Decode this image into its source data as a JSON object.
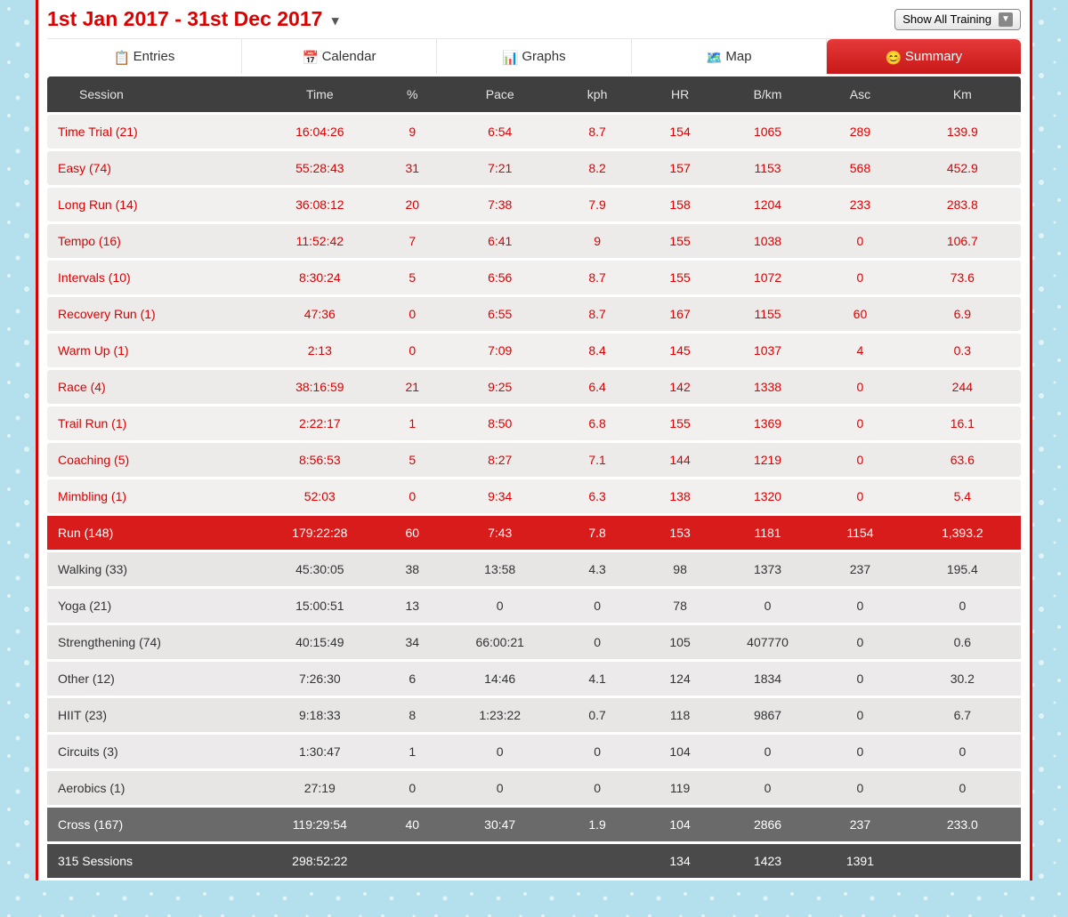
{
  "header": {
    "dateRange": "1st Jan 2017 - 31st Dec 2017",
    "dropdown": "Show All Training"
  },
  "tabs": [
    {
      "label": "Entries",
      "icon": "📋"
    },
    {
      "label": "Calendar",
      "icon": "📅"
    },
    {
      "label": "Graphs",
      "icon": "📊"
    },
    {
      "label": "Map",
      "icon": "🗺️"
    },
    {
      "label": "Summary",
      "icon": "😊",
      "active": true
    }
  ],
  "columns": [
    "Session",
    "Time",
    "%",
    "Pace",
    "kph",
    "HR",
    "B/km",
    "Asc",
    "Km"
  ],
  "colWidths": [
    "22%",
    "12%",
    "7%",
    "11%",
    "9%",
    "8%",
    "10%",
    "9%",
    "12%"
  ],
  "rows": [
    {
      "cls": "red",
      "c": [
        "Time Trial (21)",
        "16:04:26",
        "9",
        "6:54",
        "8.7",
        "154",
        "1065",
        "289",
        "139.9"
      ]
    },
    {
      "cls": "red",
      "c": [
        "Easy (74)",
        "55:28:43",
        "31",
        "7:21",
        "8.2",
        "157",
        "1153",
        "568",
        "452.9"
      ]
    },
    {
      "cls": "red",
      "c": [
        "Long Run (14)",
        "36:08:12",
        "20",
        "7:38",
        "7.9",
        "158",
        "1204",
        "233",
        "283.8"
      ]
    },
    {
      "cls": "red",
      "c": [
        "Tempo (16)",
        "11:52:42",
        "7",
        "6:41",
        "9",
        "155",
        "1038",
        "0",
        "106.7"
      ]
    },
    {
      "cls": "red",
      "c": [
        "Intervals (10)",
        "8:30:24",
        "5",
        "6:56",
        "8.7",
        "155",
        "1072",
        "0",
        "73.6"
      ]
    },
    {
      "cls": "red",
      "c": [
        "Recovery Run (1)",
        "47:36",
        "0",
        "6:55",
        "8.7",
        "167",
        "1155",
        "60",
        "6.9"
      ]
    },
    {
      "cls": "red",
      "c": [
        "Warm Up (1)",
        "2:13",
        "0",
        "7:09",
        "8.4",
        "145",
        "1037",
        "4",
        "0.3"
      ]
    },
    {
      "cls": "red",
      "c": [
        "Race (4)",
        "38:16:59",
        "21",
        "9:25",
        "6.4",
        "142",
        "1338",
        "0",
        "244"
      ]
    },
    {
      "cls": "red",
      "c": [
        "Trail Run (1)",
        "2:22:17",
        "1",
        "8:50",
        "6.8",
        "155",
        "1369",
        "0",
        "16.1"
      ]
    },
    {
      "cls": "red",
      "c": [
        "Coaching (5)",
        "8:56:53",
        "5",
        "8:27",
        "7.1",
        "144",
        "1219",
        "0",
        "63.6"
      ]
    },
    {
      "cls": "red",
      "c": [
        "Mimbling (1)",
        "52:03",
        "0",
        "9:34",
        "6.3",
        "138",
        "1320",
        "0",
        "5.4"
      ]
    },
    {
      "cls": "total",
      "c": [
        "Run (148)",
        "179:22:28",
        "60",
        "7:43",
        "7.8",
        "153",
        "1181",
        "1154",
        "1,393.2"
      ]
    },
    {
      "cls": "dark",
      "c": [
        "Walking (33)",
        "45:30:05",
        "38",
        "13:58",
        "4.3",
        "98",
        "1373",
        "237",
        "195.4"
      ]
    },
    {
      "cls": "dark",
      "c": [
        "Yoga (21)",
        "15:00:51",
        "13",
        "0",
        "0",
        "78",
        "0",
        "0",
        "0"
      ]
    },
    {
      "cls": "dark",
      "c": [
        "Strengthening (74)",
        "40:15:49",
        "34",
        "66:00:21",
        "0",
        "105",
        "407770",
        "0",
        "0.6"
      ]
    },
    {
      "cls": "dark",
      "c": [
        "Other (12)",
        "7:26:30",
        "6",
        "14:46",
        "4.1",
        "124",
        "1834",
        "0",
        "30.2"
      ]
    },
    {
      "cls": "dark",
      "c": [
        "HIIT (23)",
        "9:18:33",
        "8",
        "1:23:22",
        "0.7",
        "118",
        "9867",
        "0",
        "6.7"
      ]
    },
    {
      "cls": "dark",
      "c": [
        "Circuits (3)",
        "1:30:47",
        "1",
        "0",
        "0",
        "104",
        "0",
        "0",
        "0"
      ]
    },
    {
      "cls": "dark",
      "c": [
        "Aerobics (1)",
        "27:19",
        "0",
        "0",
        "0",
        "119",
        "0",
        "0",
        "0"
      ]
    },
    {
      "cls": "subtotal",
      "c": [
        "Cross (167)",
        "119:29:54",
        "40",
        "30:47",
        "1.9",
        "104",
        "2866",
        "237",
        "233.0"
      ]
    },
    {
      "cls": "grand",
      "c": [
        "315 Sessions",
        "298:52:22",
        "",
        "",
        "",
        "134",
        "1423",
        "1391",
        ""
      ]
    }
  ]
}
